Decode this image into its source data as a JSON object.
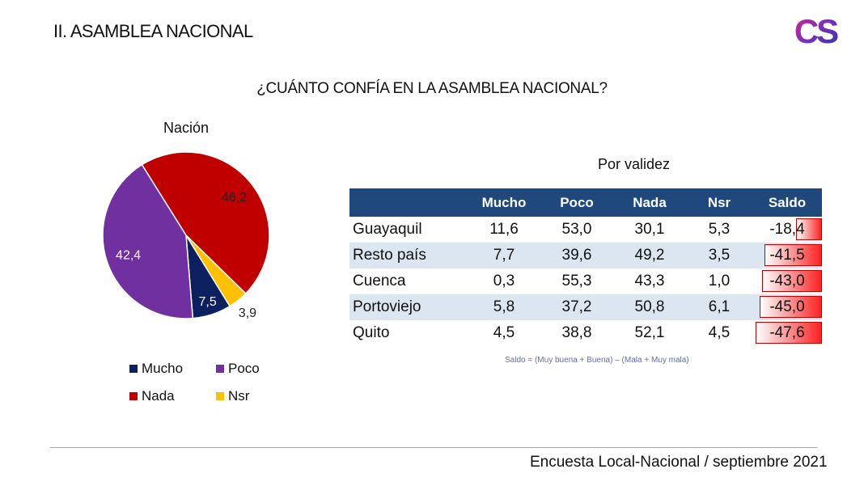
{
  "header": {
    "section_title": "II. ASAMBLEA NACIONAL",
    "logo_text": "CS"
  },
  "question": "¿CUÁNTO CONFÍA EN LA ASAMBLEA NACIONAL?",
  "colors": {
    "mucho": "#0c2060",
    "poco": "#7030a0",
    "nada": "#c00000",
    "nsr": "#ffc000",
    "table_header": "#1f497d",
    "row_shade": "#dce6f1"
  },
  "chart_data": [
    {
      "type": "pie",
      "title": "Nación",
      "categories": [
        "Mucho",
        "Poco",
        "Nada",
        "Nsr"
      ],
      "values": [
        7.5,
        42.4,
        46.2,
        3.9
      ],
      "labels": [
        "7,5",
        "42,4",
        "46,2",
        "3,9"
      ],
      "legend": {
        "placement": "bottom",
        "entries": [
          "Mucho",
          "Poco",
          "Nada",
          "Nsr"
        ]
      }
    },
    {
      "type": "table",
      "title": "Por validez",
      "columns": [
        "",
        "Mucho",
        "Poco",
        "Nada",
        "Nsr",
        "Saldo"
      ],
      "rows": [
        {
          "city": "Guayaquil",
          "mucho": "11,6",
          "poco": "53,0",
          "nada": "30,1",
          "nsr": "5,3",
          "saldo": "-18,4",
          "saldo_value": -18.4
        },
        {
          "city": "Resto país",
          "mucho": "7,7",
          "poco": "39,6",
          "nada": "49,2",
          "nsr": "3,5",
          "saldo": "-41,5",
          "saldo_value": -41.5
        },
        {
          "city": "Cuenca",
          "mucho": "0,3",
          "poco": "55,3",
          "nada": "43,3",
          "nsr": "1,0",
          "saldo": "-43,0",
          "saldo_value": -43.0
        },
        {
          "city": "Portoviejo",
          "mucho": "5,8",
          "poco": "37,2",
          "nada": "50,8",
          "nsr": "6,1",
          "saldo": "-45,0",
          "saldo_value": -45.0
        },
        {
          "city": "Quito",
          "mucho": "4,5",
          "poco": "38,8",
          "nada": "52,1",
          "nsr": "4,5",
          "saldo": "-47,6",
          "saldo_value": -47.6
        }
      ],
      "footnote": "Saldo = (Muy buena + Buena) – (Mala + Muy mala)"
    }
  ],
  "footer": {
    "text": "Encuesta Local-Nacional / septiembre 2021"
  }
}
